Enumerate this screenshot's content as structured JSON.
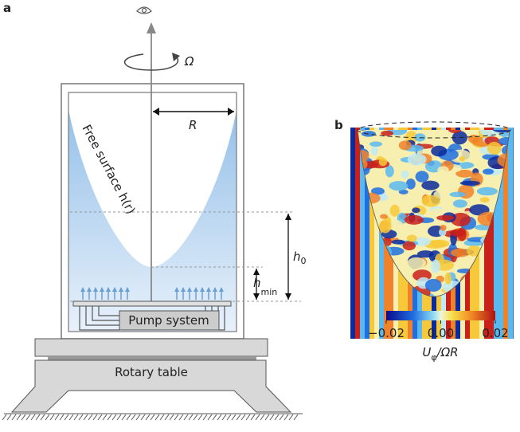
{
  "panel_a": {
    "label": "a",
    "rotation_label": "Ω",
    "radius_label": "R",
    "surface_label": "Free surface h(r)",
    "h0_label": {
      "base": "h",
      "sub": "0"
    },
    "hmin_label": {
      "base": "h",
      "sub": "min"
    },
    "pump_label": "Pump system",
    "table_label": "Rotary table"
  },
  "panel_b": {
    "label": "b",
    "colorbar": {
      "lim": [
        -0.02,
        0.02
      ],
      "ticks": [
        {
          "value": -0.02,
          "label": "−0.02"
        },
        {
          "value": 0,
          "label": "0.00"
        },
        {
          "value": 0.02,
          "label": "0.02"
        }
      ],
      "label": {
        "base": "U",
        "sub": "φ",
        "rest": "/ΩR"
      }
    }
  }
}
